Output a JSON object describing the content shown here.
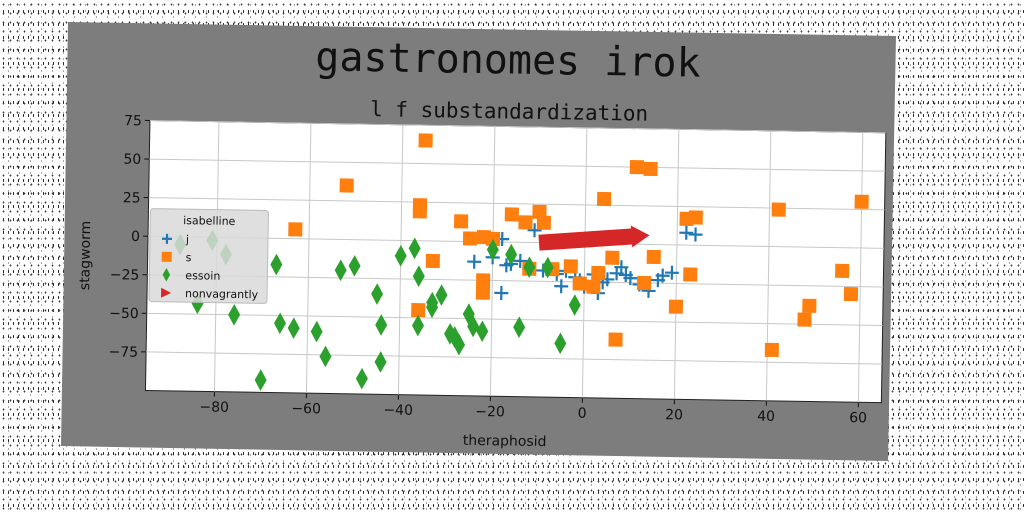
{
  "chart_data": {
    "type": "scatter",
    "title": "gastronomes irok",
    "subtitle": "l f substandardization",
    "xlabel": "theraphosid",
    "ylabel": "stagworm",
    "xlim": [
      -95,
      65
    ],
    "ylim": [
      -100,
      75
    ],
    "xticks": [
      -80,
      -60,
      -40,
      -20,
      0,
      20,
      40,
      60
    ],
    "yticks": [
      75,
      50,
      25,
      0,
      -25,
      -50,
      -75
    ],
    "xtick_labels": [
      "−80",
      "−60",
      "−40",
      "−20",
      "0",
      "20",
      "40",
      "60"
    ],
    "ytick_labels": [
      "75",
      "50",
      "25",
      "0",
      "−25",
      "−50",
      "−75"
    ],
    "grid": true,
    "legend": {
      "title": "isabelline",
      "placement": "center-left"
    },
    "series": [
      {
        "name": "j",
        "marker": "plus",
        "color": "#1f77b4",
        "points": [
          [
            -24,
            -13
          ],
          [
            -20,
            -10
          ],
          [
            -18,
            2
          ],
          [
            -17,
            -15
          ],
          [
            -14,
            -12
          ],
          [
            -12,
            -17
          ],
          [
            -11,
            8
          ],
          [
            -9,
            -18
          ],
          [
            -6,
            -20
          ],
          [
            -5,
            -28
          ],
          [
            -4,
            -18
          ],
          [
            -2,
            -22
          ],
          [
            -1,
            -24
          ],
          [
            0,
            -28
          ],
          [
            2,
            -20
          ],
          [
            4,
            -25
          ],
          [
            5,
            -23
          ],
          [
            7,
            -19
          ],
          [
            9,
            -20
          ],
          [
            10,
            -22
          ],
          [
            12,
            -26
          ],
          [
            14,
            -30
          ],
          [
            16,
            -23
          ],
          [
            17,
            -20
          ],
          [
            19,
            -18
          ],
          [
            -22,
            -30
          ],
          [
            -18,
            -33
          ],
          [
            22,
            8
          ],
          [
            24,
            7
          ],
          [
            3,
            -32
          ],
          [
            -16,
            -14
          ],
          [
            8,
            -15
          ]
        ]
      },
      {
        "name": "s",
        "marker": "square",
        "color": "#ff7f0e",
        "points": [
          [
            -35,
            65
          ],
          [
            -52,
            35
          ],
          [
            -63,
            6
          ],
          [
            -36,
            23
          ],
          [
            -36,
            19
          ],
          [
            -33,
            -13
          ],
          [
            -36,
            -45
          ],
          [
            -27,
            13
          ],
          [
            -25,
            2
          ],
          [
            -22,
            3
          ],
          [
            -20,
            2
          ],
          [
            -22,
            -25
          ],
          [
            -22,
            -33
          ],
          [
            -16,
            18
          ],
          [
            -13,
            13
          ],
          [
            -12,
            -17
          ],
          [
            -10,
            20
          ],
          [
            -9,
            13
          ],
          [
            -7,
            -17
          ],
          [
            -3,
            -15
          ],
          [
            -1,
            -26
          ],
          [
            2,
            -28
          ],
          [
            3,
            -19
          ],
          [
            4,
            29
          ],
          [
            6,
            -9
          ],
          [
            7,
            -62
          ],
          [
            11,
            50
          ],
          [
            14,
            49
          ],
          [
            13,
            -25
          ],
          [
            15,
            -8
          ],
          [
            20,
            -40
          ],
          [
            22,
            17
          ],
          [
            24,
            18
          ],
          [
            23,
            -19
          ],
          [
            42,
            24
          ],
          [
            41,
            -67
          ],
          [
            48,
            -47
          ],
          [
            49,
            -38
          ],
          [
            56,
            -15
          ],
          [
            58,
            -30
          ],
          [
            60,
            30
          ]
        ]
      },
      {
        "name": "essoin",
        "marker": "diamond",
        "color": "#2ca02c",
        "points": [
          [
            -88,
            -5
          ],
          [
            -84,
            -43
          ],
          [
            -81,
            -2
          ],
          [
            -78,
            -11
          ],
          [
            -76,
            -50
          ],
          [
            -67,
            -17
          ],
          [
            -66,
            -55
          ],
          [
            -63,
            -58
          ],
          [
            -58,
            -60
          ],
          [
            -56,
            -76
          ],
          [
            -53,
            -20
          ],
          [
            -50,
            -17
          ],
          [
            -48,
            -90
          ],
          [
            -45,
            -35
          ],
          [
            -44,
            -55
          ],
          [
            -44,
            -79
          ],
          [
            -40,
            -10
          ],
          [
            -37,
            -5
          ],
          [
            -36,
            -23
          ],
          [
            -36,
            -55
          ],
          [
            -33,
            -40
          ],
          [
            -33,
            -43
          ],
          [
            -31,
            -35
          ],
          [
            -29,
            -60
          ],
          [
            -28,
            -62
          ],
          [
            -27,
            -67
          ],
          [
            -25,
            -47
          ],
          [
            -24,
            -55
          ],
          [
            -22,
            -58
          ],
          [
            -20,
            -5
          ],
          [
            -16,
            -8
          ],
          [
            -14,
            -55
          ],
          [
            -12,
            -16
          ],
          [
            -8,
            -16
          ],
          [
            -5,
            -65
          ],
          [
            -2,
            -40
          ],
          [
            -70,
            -92
          ]
        ]
      },
      {
        "name": "nonvagrantly",
        "marker": "triangle",
        "color": "#d62728",
        "points": []
      }
    ],
    "arrow": {
      "from": [
        -10,
        0
      ],
      "to": [
        14,
        6
      ],
      "color": "#d62728"
    }
  }
}
